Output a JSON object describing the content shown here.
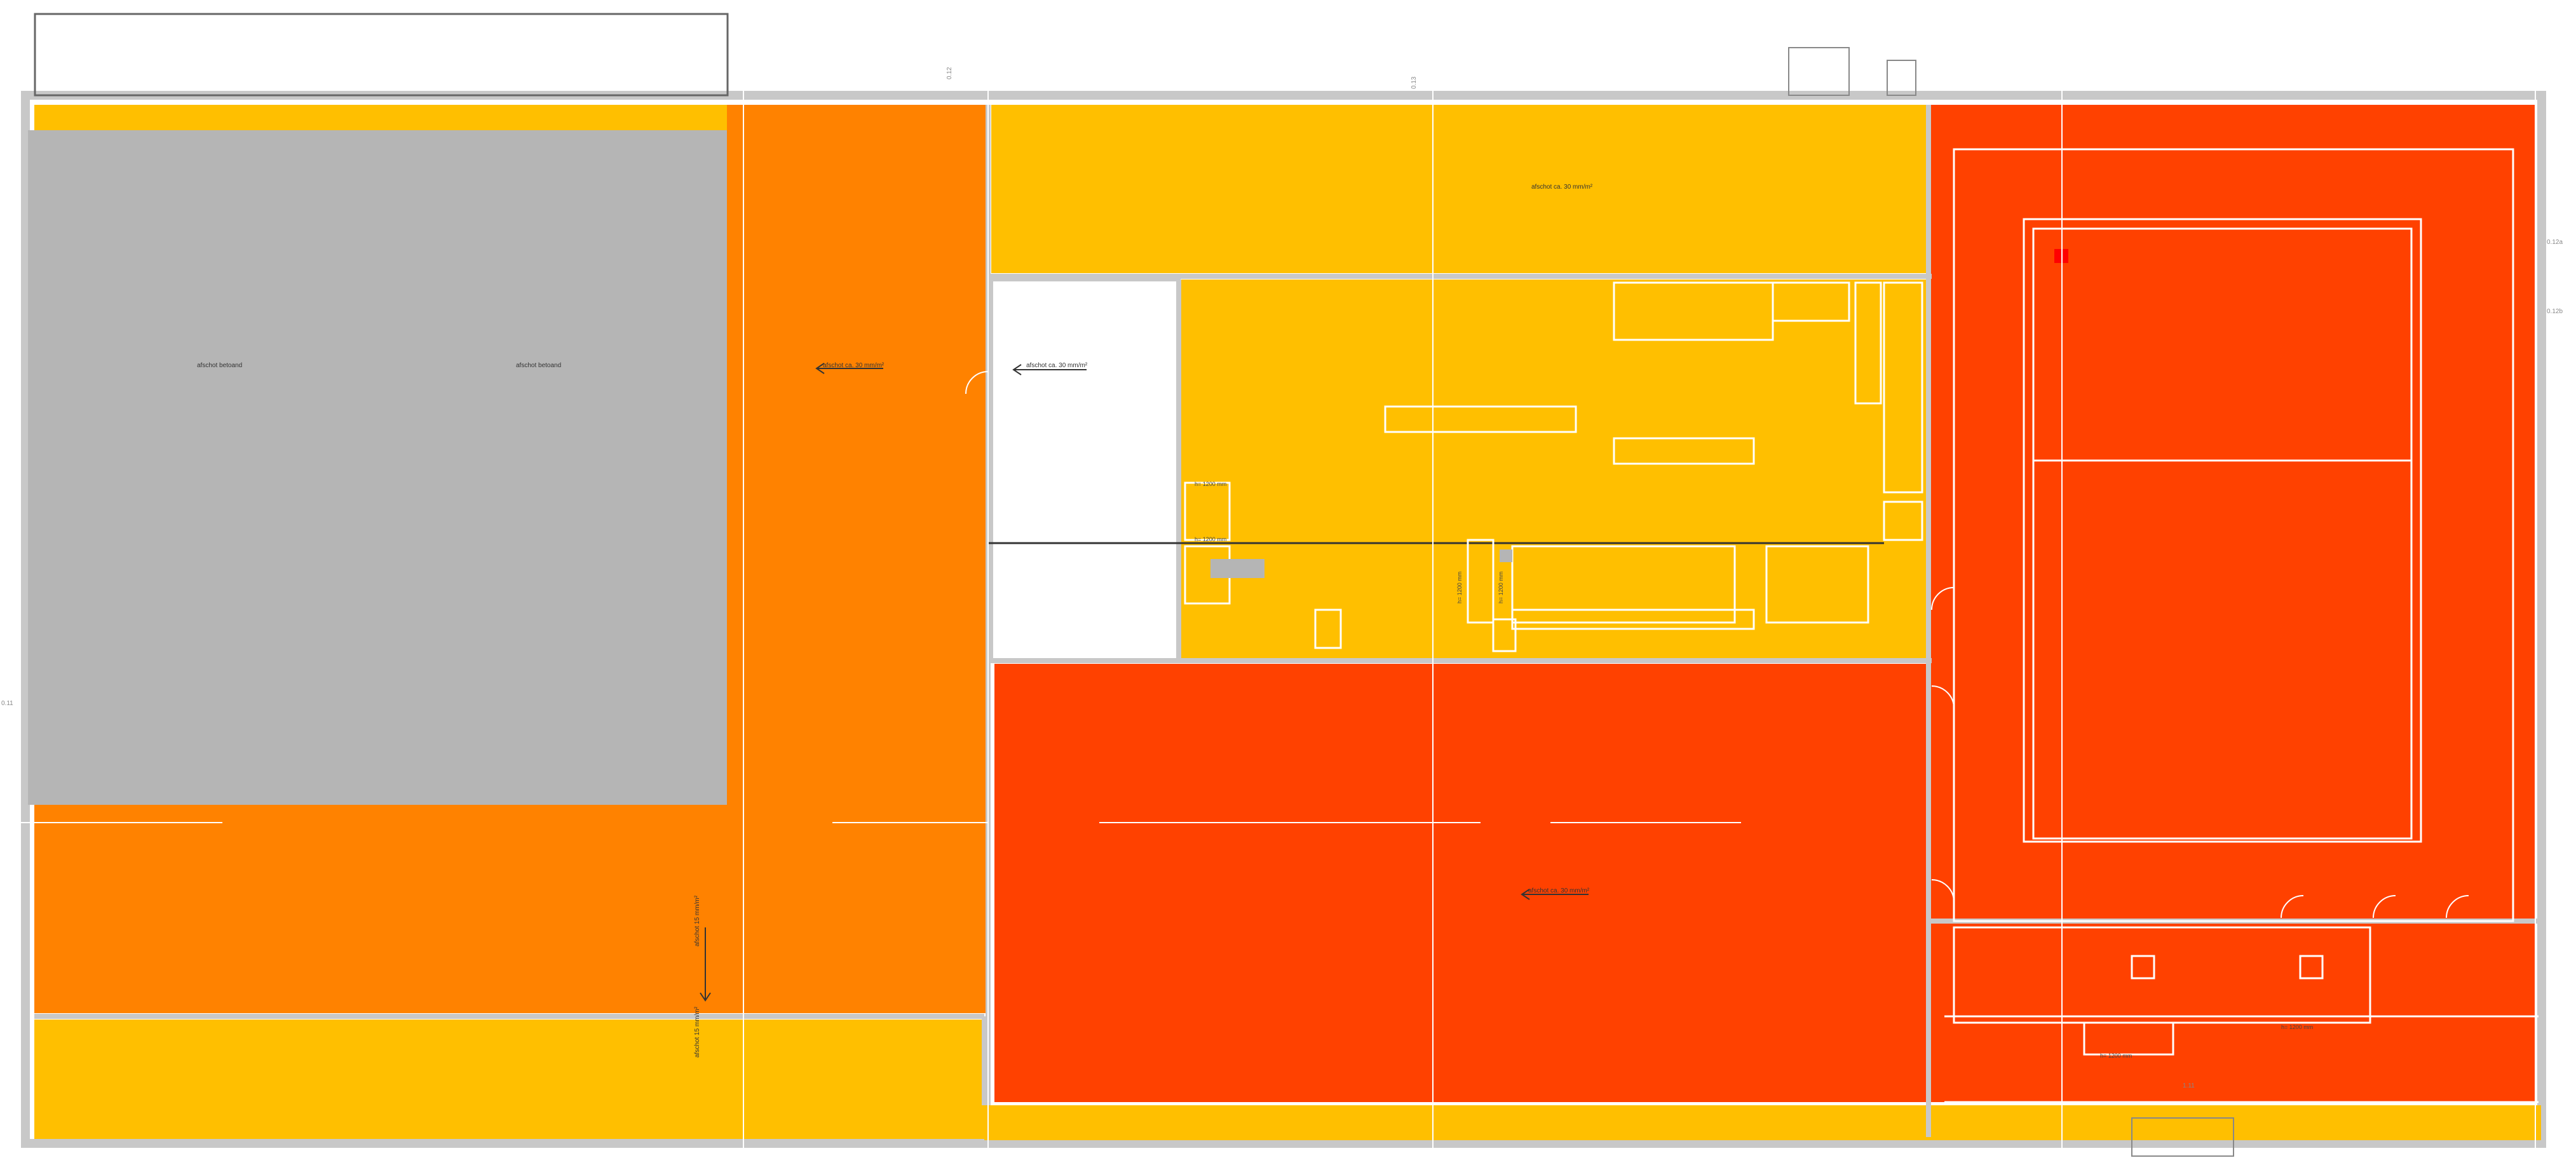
{
  "colors": {
    "yellow": "#ffbf00",
    "orange": "#ff8200",
    "red": "#ff4100",
    "grey": "#b5b5b5",
    "wall": "#c8c8c8",
    "white": "#ffffff",
    "line": "#ffffff",
    "dark": "#333333"
  },
  "zones": {
    "grey_area": {
      "label_1": "afschot betoand",
      "label_2": "afschot betoand"
    },
    "orange_strip": {
      "label": "afschot ca. 30 mm/m²"
    },
    "yellow_top": {
      "label": "afschot ca. 30 mm/m²"
    },
    "white_room": {
      "label": "afschot ca. 30 mm/m²"
    },
    "red_center": {
      "label": "afschot ca. 30 mm/m²"
    },
    "orange_vertical": {
      "label": "afschot 15 mm/m²"
    },
    "yellow_bottom": {
      "label": "afschot 15 mm/m²"
    }
  },
  "annotations": {
    "height_1": "h= 1200 mm",
    "height_2": "h= 1200 mm",
    "height_3": "h= 1200 mm",
    "height_4": "h= 1200 mm",
    "room_red": "h= 1200 mm",
    "stair_label": "h= 1200 mm",
    "tag_1": "0.11",
    "tag_2": "0.12",
    "tag_3": "0.13",
    "tag_4": "1.11",
    "tag_5": "0.12a",
    "tag_6": "0.12b"
  },
  "icons": {
    "door": "door-swing-icon",
    "stair": "staircase-icon",
    "arrow": "slope-arrow-icon"
  }
}
